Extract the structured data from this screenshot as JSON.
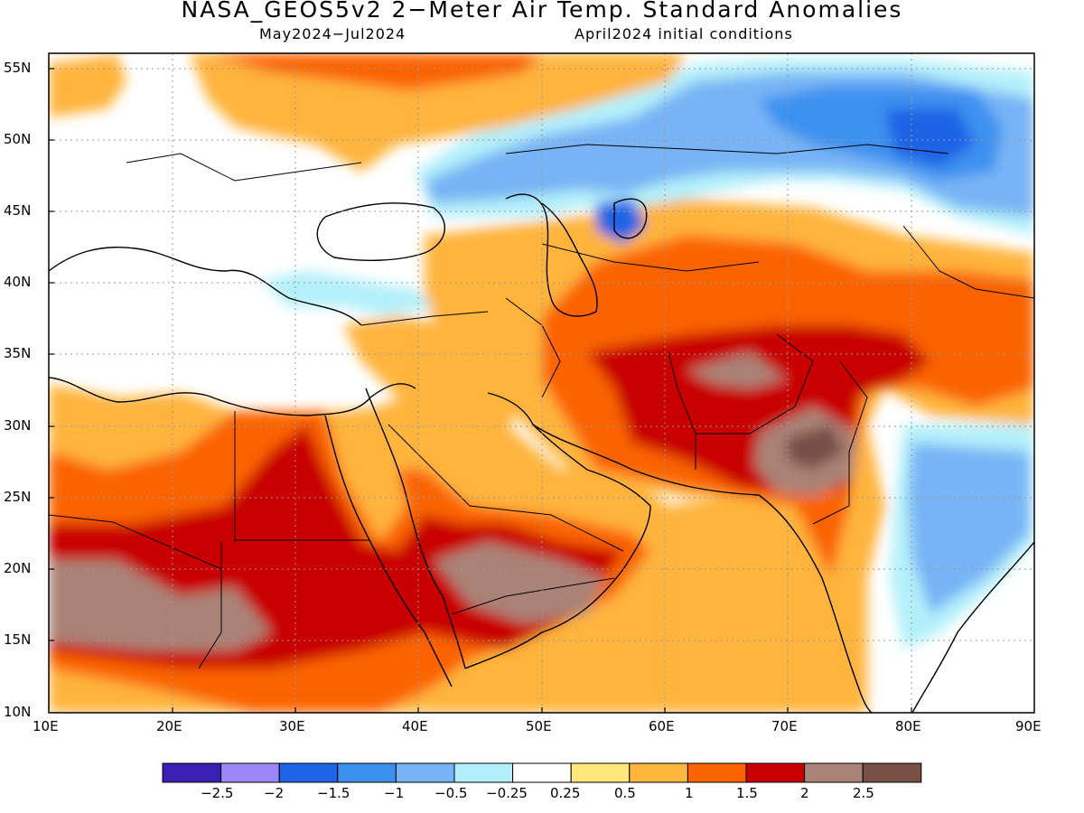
{
  "header": {
    "title": "NASA_GEOS5v2 2-Meter Air Temp. Standard Anomalies",
    "period": "May2024-Jul2024",
    "init": "April2024 initial conditions"
  },
  "map": {
    "lat_labels": [
      "55N",
      "50N",
      "45N",
      "40N",
      "35N",
      "30N",
      "25N",
      "20N",
      "15N",
      "10N"
    ],
    "lon_labels": [
      "10E",
      "20E",
      "30E",
      "40E",
      "50E",
      "60E",
      "70E",
      "80E",
      "90E"
    ]
  },
  "colorbar": {
    "colors": [
      "#3a1fb5",
      "#9b87f5",
      "#1e64e6",
      "#3c91f0",
      "#78b4f5",
      "#b4f0fa",
      "#ffffff",
      "#ffe67d",
      "#ffb43c",
      "#fa6400",
      "#c80000",
      "#aa8276",
      "#785046"
    ],
    "tick_labels": [
      "-2.5",
      "-2",
      "-1.5",
      "-1",
      "-0.5",
      "-0.25",
      "0.25",
      "0.5",
      "1",
      "1.5",
      "2",
      "2.5"
    ]
  }
}
